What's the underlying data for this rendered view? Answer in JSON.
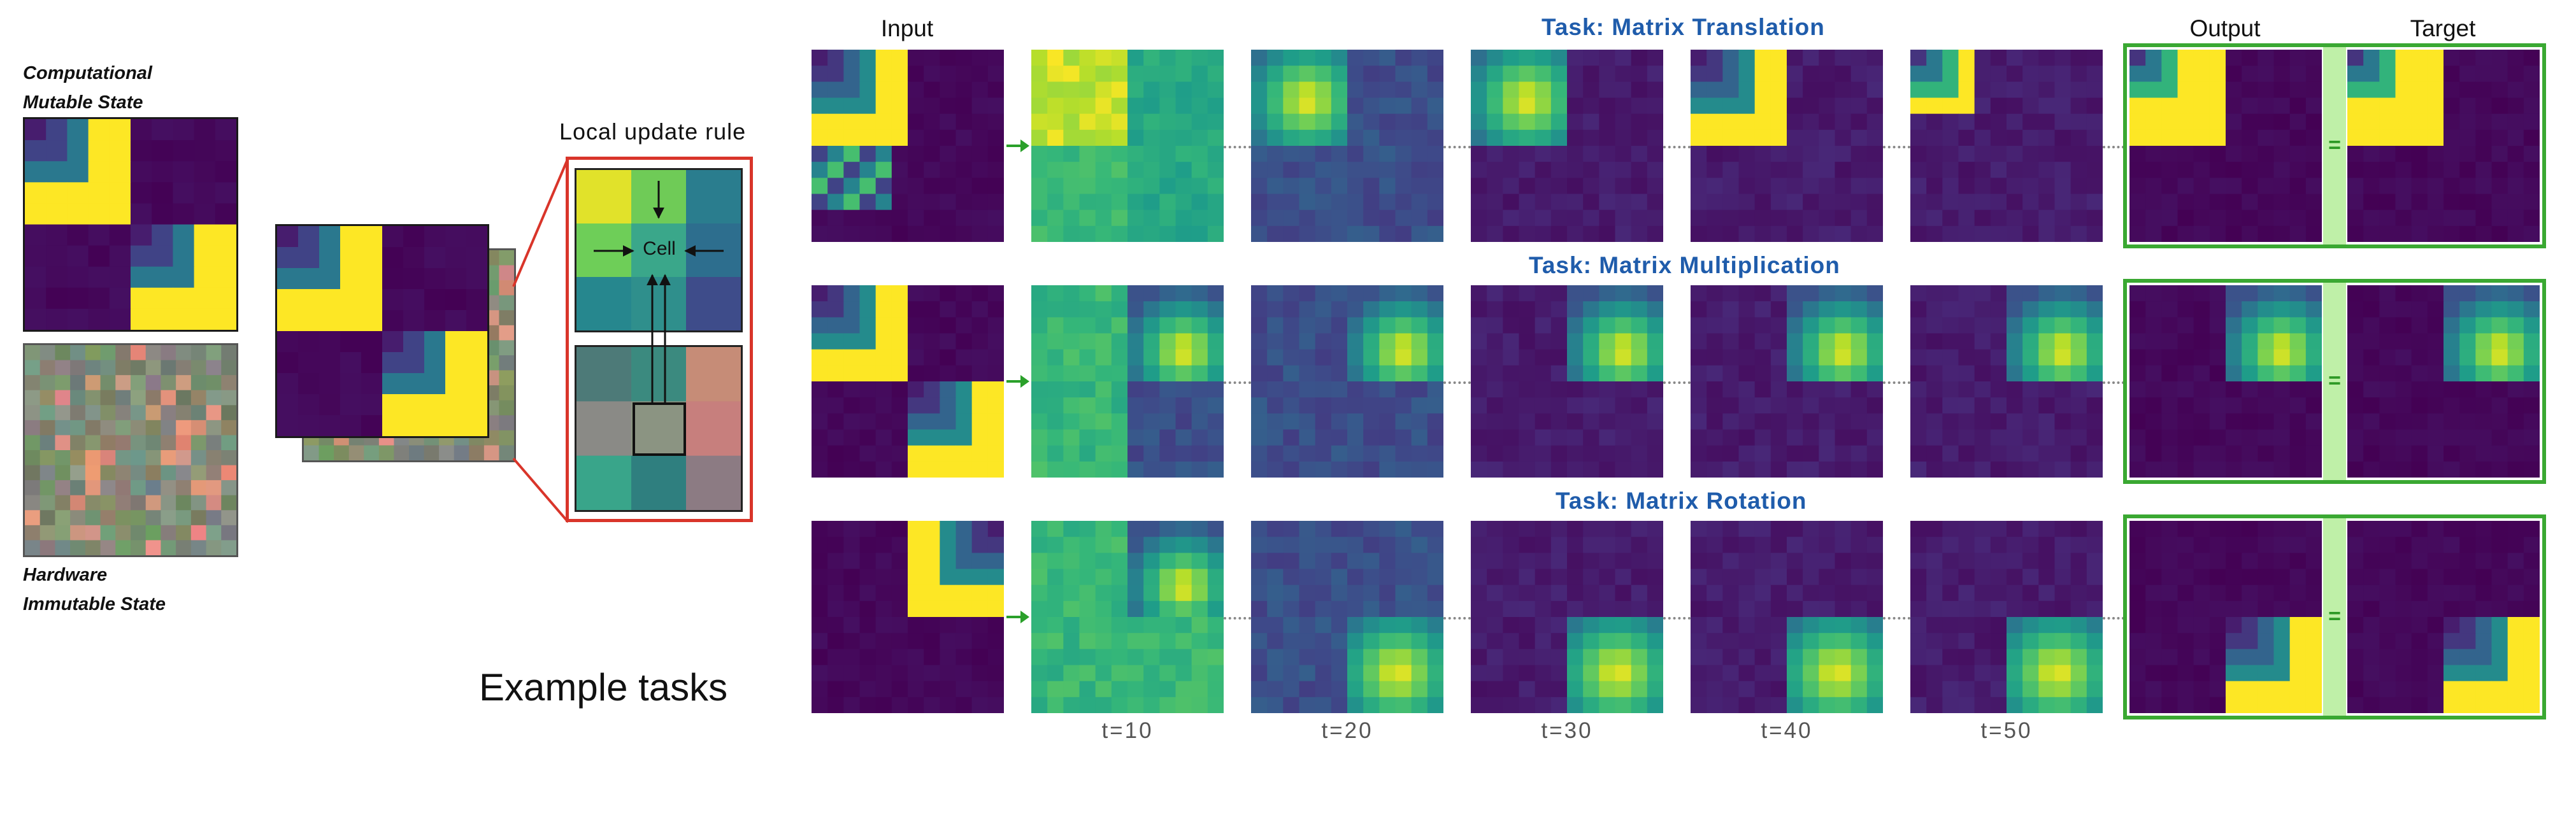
{
  "left": {
    "computational_label": [
      "Computational",
      "Mutable State"
    ],
    "hardware_label": [
      "Hardware",
      "Immutable State"
    ]
  },
  "rule": {
    "title": "Local update rule",
    "cell_label": "Cell"
  },
  "example_tasks": "Example tasks",
  "columns": {
    "input": "Input",
    "output": "Output",
    "target": "Target"
  },
  "tasks": [
    {
      "title": "Task: Matrix Translation"
    },
    {
      "title": "Task: Matrix Multiplication"
    },
    {
      "title": "Task: Matrix Rotation"
    }
  ],
  "times": [
    "t=10",
    "t=20",
    "t=30",
    "t=40",
    "t=50"
  ],
  "equals": "=",
  "colors": {
    "viridis_dark": "#440154",
    "task_title": "#1f5cab",
    "output_frame": "#3aa832",
    "rule_frame": "#d9352a",
    "arrow_green": "#2aa02a"
  }
}
